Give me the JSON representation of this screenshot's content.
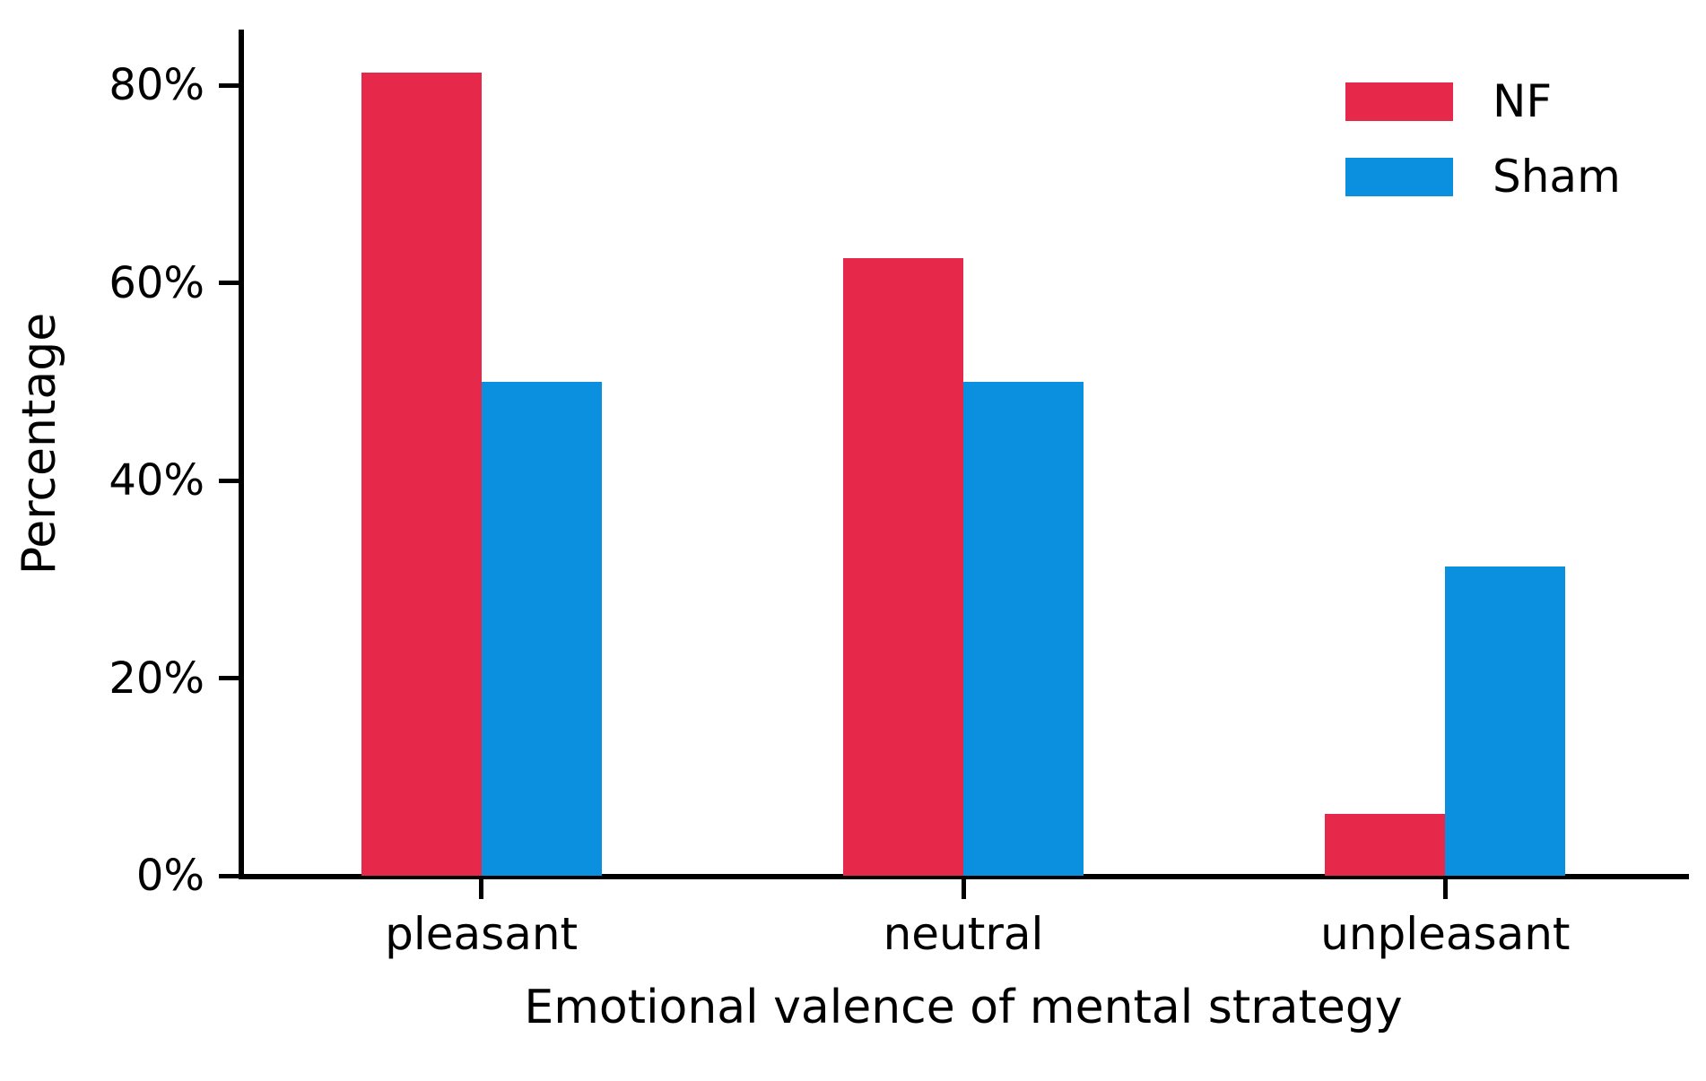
{
  "chart_data": {
    "type": "bar",
    "title": "",
    "categories": [
      "pleasant",
      "neutral",
      "unpleasant"
    ],
    "series": [
      {
        "name": "NF",
        "color": "#e6284b",
        "values": [
          81.25,
          62.5,
          6.25
        ]
      },
      {
        "name": "Sham",
        "color": "#0b90e0",
        "values": [
          50.0,
          50.0,
          31.25
        ]
      }
    ],
    "xlabel": "Emotional valence of mental strategy",
    "ylabel": "Percentage",
    "ylim": [
      0,
      85.6
    ],
    "yticks": [
      0,
      20,
      40,
      60,
      80
    ],
    "ytick_format": "{v}%",
    "grid": false,
    "legend_position": "upper right",
    "axis_color": "#000000",
    "background_color": "#ffffff"
  }
}
